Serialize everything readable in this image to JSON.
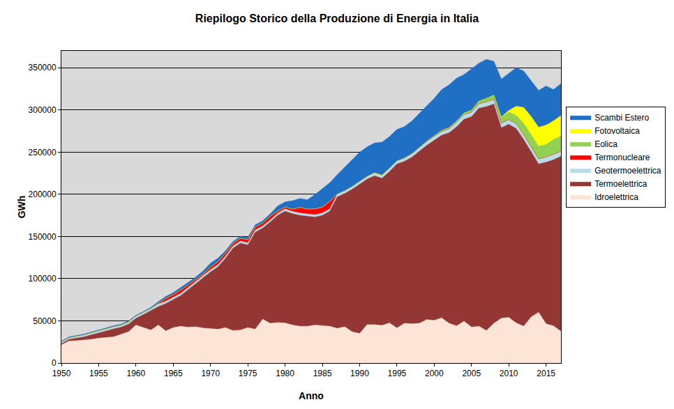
{
  "chart_data": {
    "type": "area",
    "stacked": true,
    "title": "Riepilogo Storico della Produzione di Energia in Italia",
    "xlabel": "Anno",
    "ylabel": "GWh",
    "x": [
      1950,
      1951,
      1952,
      1953,
      1954,
      1955,
      1956,
      1957,
      1958,
      1959,
      1960,
      1961,
      1962,
      1963,
      1964,
      1965,
      1966,
      1967,
      1968,
      1969,
      1970,
      1971,
      1972,
      1973,
      1974,
      1975,
      1976,
      1977,
      1978,
      1979,
      1980,
      1981,
      1982,
      1983,
      1984,
      1985,
      1986,
      1987,
      1988,
      1989,
      1990,
      1991,
      1992,
      1993,
      1994,
      1995,
      1996,
      1997,
      1998,
      1999,
      2000,
      2001,
      2002,
      2003,
      2004,
      2005,
      2006,
      2007,
      2008,
      2009,
      2010,
      2011,
      2012,
      2013,
      2014,
      2015,
      2016,
      2017
    ],
    "xlim": [
      1950,
      2017
    ],
    "xticks": [
      1950,
      1955,
      1960,
      1965,
      1970,
      1975,
      1980,
      1985,
      1990,
      1995,
      2000,
      2005,
      2010,
      2015
    ],
    "ylim": [
      0,
      370000
    ],
    "yticks": [
      0,
      50000,
      100000,
      150000,
      200000,
      250000,
      300000,
      350000
    ],
    "grid": true,
    "legend": "right",
    "series": [
      {
        "name": "Idroelettrica",
        "color": "#fce4d6",
        "values": [
          21500,
          26000,
          26500,
          27000,
          28000,
          29500,
          30000,
          31000,
          34000,
          37000,
          45000,
          42000,
          39000,
          45000,
          38000,
          42000,
          43500,
          42500,
          43000,
          41500,
          41000,
          40000,
          42000,
          38500,
          39000,
          42000,
          40000,
          52000,
          47000,
          48000,
          47500,
          45000,
          43500,
          43500,
          45000,
          44000,
          43500,
          41000,
          43000,
          37000,
          35000,
          45500,
          45500,
          44500,
          47500,
          41500,
          47000,
          46500,
          47000,
          51500,
          50500,
          53500,
          47000,
          44000,
          49500,
          42500,
          43500,
          38500,
          47000,
          53000,
          54000,
          47500,
          43500,
          54500,
          60000,
          46500,
          44000,
          37500
        ]
      },
      {
        "name": "Termoelettrica",
        "color": "#943634",
        "values": [
          1500,
          2000,
          3000,
          4000,
          5500,
          6000,
          8000,
          9500,
          8500,
          9000,
          8000,
          15500,
          23000,
          22000,
          32500,
          33000,
          36500,
          44500,
          51000,
          59500,
          67000,
          74000,
          82000,
          97500,
          103000,
          98000,
          115000,
          108000,
          120000,
          127000,
          132500,
          132000,
          131500,
          130500,
          128000,
          131000,
          136500,
          156000,
          158000,
          169000,
          177000,
          172500,
          176500,
          174500,
          179500,
          194500,
          192000,
          197500,
          204000,
          206500,
          213500,
          216500,
          226000,
          236000,
          239500,
          249500,
          258500,
          265500,
          260000,
          226000,
          229000,
          230500,
          221500,
          195500,
          176000,
          191500,
          197000,
          207500
        ]
      },
      {
        "name": "Geotermoelettrica",
        "color": "#b7dee8",
        "values": [
          1900,
          2000,
          2100,
          2200,
          2300,
          2300,
          2400,
          2400,
          2400,
          2500,
          2600,
          2600,
          2700,
          2700,
          2700,
          2600,
          2600,
          2600,
          2700,
          2700,
          2700,
          2700,
          2600,
          2500,
          2500,
          2500,
          2500,
          2500,
          2500,
          2500,
          2700,
          2700,
          2700,
          2700,
          2800,
          2800,
          2800,
          3000,
          3100,
          3100,
          3200,
          3200,
          3500,
          3700,
          3900,
          3400,
          3800,
          3900,
          4200,
          4400,
          4700,
          4500,
          4700,
          5300,
          5400,
          5300,
          5500,
          5600,
          5500,
          5300,
          5400,
          5700,
          5600,
          5700,
          5900,
          6200,
          6300,
          6200
        ]
      },
      {
        "name": "Termonucleare",
        "color": "#ff0000",
        "values": [
          0,
          0,
          0,
          0,
          0,
          0,
          0,
          0,
          0,
          0,
          0,
          0,
          0,
          1000,
          3500,
          3500,
          3900,
          3200,
          2500,
          1700,
          3200,
          3400,
          3600,
          3100,
          3400,
          3800,
          3800,
          3400,
          4400,
          2600,
          2200,
          2700,
          6800,
          5800,
          6900,
          7000,
          8800,
          200,
          0,
          0,
          0,
          0,
          0,
          0,
          0,
          0,
          0,
          0,
          0,
          0,
          0,
          0,
          0,
          0,
          0,
          0,
          0,
          0,
          0,
          0,
          0,
          0,
          0,
          0,
          0,
          0,
          0,
          0
        ]
      },
      {
        "name": "Eolica",
        "color": "#92d050",
        "values": [
          0,
          0,
          0,
          0,
          0,
          0,
          0,
          0,
          0,
          0,
          0,
          0,
          0,
          0,
          0,
          0,
          0,
          0,
          0,
          0,
          0,
          0,
          0,
          0,
          0,
          0,
          0,
          0,
          0,
          0,
          0,
          0,
          0,
          0,
          0,
          0,
          0,
          0,
          0,
          0,
          0,
          0,
          0,
          0,
          0,
          10,
          30,
          120,
          230,
          400,
          560,
          1180,
          1400,
          1460,
          1850,
          2340,
          2970,
          4030,
          4860,
          6540,
          9130,
          9860,
          13410,
          14900,
          15180,
          14840,
          17690,
          17740
        ]
      },
      {
        "name": "Fotovoltaica",
        "color": "#ffff00",
        "values": [
          0,
          0,
          0,
          0,
          0,
          0,
          0,
          0,
          0,
          0,
          0,
          0,
          0,
          0,
          0,
          0,
          0,
          0,
          0,
          0,
          0,
          0,
          0,
          0,
          0,
          0,
          0,
          0,
          0,
          0,
          0,
          0,
          0,
          0,
          0,
          0,
          0,
          0,
          0,
          0,
          0,
          0,
          0,
          0,
          0,
          0,
          0,
          0,
          0,
          0,
          0,
          0,
          0,
          0,
          0,
          0,
          0,
          40,
          190,
          680,
          1900,
          10800,
          18900,
          21600,
          22300,
          22900,
          22100,
          24400
        ]
      },
      {
        "name": "Scambi Estero",
        "color": "#1f6fc5",
        "values": [
          900,
          900,
          1000,
          1000,
          1000,
          1200,
          1200,
          1300,
          1100,
          1200,
          1000,
          1000,
          1300,
          2000,
          2200,
          2300,
          2600,
          2700,
          2500,
          3600,
          4500,
          4100,
          2800,
          2300,
          2200,
          2500,
          2500,
          2600,
          2800,
          6000,
          6000,
          10000,
          10500,
          11000,
          17000,
          22000,
          22000,
          23000,
          28000,
          32000,
          34600,
          35000,
          35300,
          39100,
          37500,
          37400,
          37400,
          38800,
          40700,
          42000,
          44300,
          48400,
          50600,
          50900,
          45600,
          49200,
          44900,
          46300,
          40000,
          45000,
          44200,
          45700,
          43100,
          42100,
          43700,
          46400,
          37000,
          37800
        ]
      }
    ]
  }
}
